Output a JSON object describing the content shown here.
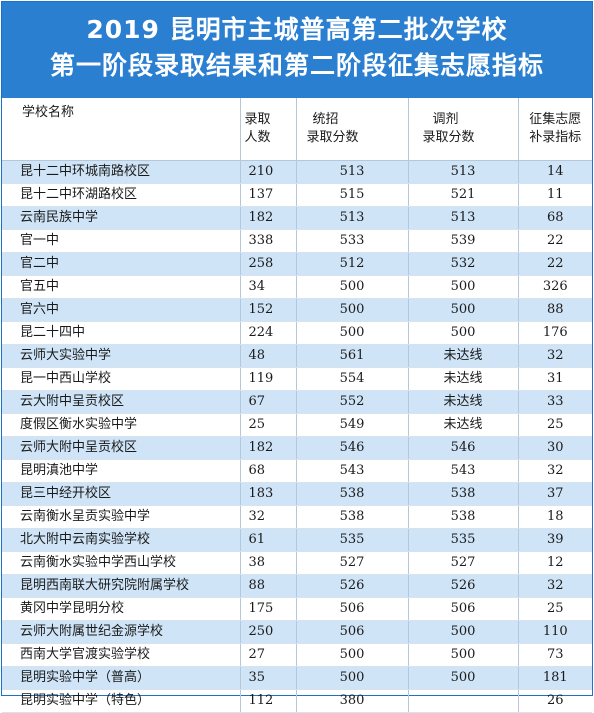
{
  "title": {
    "line1": "2019 昆明市主城普高第二批次学校",
    "line2": "第一阶段录取结果和第二阶段征集志愿指标"
  },
  "headers": {
    "school": "学校名称",
    "admitted_1": "录取",
    "admitted_2": "人数",
    "unified_1": "统招",
    "unified_2": "录取分数",
    "adjusted_1": "调剂",
    "adjusted_2": "录取分数",
    "quota_1": "征集志愿",
    "quota_2": "补录指标"
  },
  "rows": [
    {
      "school": "昆十二中环城南路校区",
      "admitted": "210",
      "unified": "513",
      "adjusted": "513",
      "quota": "14"
    },
    {
      "school": "昆十二中环湖路校区",
      "admitted": "137",
      "unified": "515",
      "adjusted": "521",
      "quota": "11"
    },
    {
      "school": "云南民族中学",
      "admitted": "182",
      "unified": "513",
      "adjusted": "513",
      "quota": "68"
    },
    {
      "school": "官一中",
      "admitted": "338",
      "unified": "533",
      "adjusted": "539",
      "quota": "22"
    },
    {
      "school": "官二中",
      "admitted": "258",
      "unified": "512",
      "adjusted": "532",
      "quota": "22"
    },
    {
      "school": "官五中",
      "admitted": "34",
      "unified": "500",
      "adjusted": "500",
      "quota": "326"
    },
    {
      "school": "官六中",
      "admitted": "152",
      "unified": "500",
      "adjusted": "500",
      "quota": "88"
    },
    {
      "school": "昆二十四中",
      "admitted": "224",
      "unified": "500",
      "adjusted": "500",
      "quota": "176"
    },
    {
      "school": "云师大实验中学",
      "admitted": "48",
      "unified": "561",
      "adjusted": "未达线",
      "quota": "32"
    },
    {
      "school": "昆一中西山学校",
      "admitted": "119",
      "unified": "554",
      "adjusted": "未达线",
      "quota": "31"
    },
    {
      "school": "云大附中呈贡校区",
      "admitted": "67",
      "unified": "552",
      "adjusted": "未达线",
      "quota": "33"
    },
    {
      "school": "度假区衡水实验中学",
      "admitted": "25",
      "unified": "549",
      "adjusted": "未达线",
      "quota": "25"
    },
    {
      "school": "云师大附中呈贡校区",
      "admitted": "182",
      "unified": "546",
      "adjusted": "546",
      "quota": "30"
    },
    {
      "school": "昆明滇池中学",
      "admitted": "68",
      "unified": "543",
      "adjusted": "543",
      "quota": "32"
    },
    {
      "school": "昆三中经开校区",
      "admitted": "183",
      "unified": "538",
      "adjusted": "538",
      "quota": "37"
    },
    {
      "school": "云南衡水呈贡实验中学",
      "admitted": "32",
      "unified": "538",
      "adjusted": "538",
      "quota": "18"
    },
    {
      "school": "北大附中云南实验学校",
      "admitted": "61",
      "unified": "535",
      "adjusted": "535",
      "quota": "39"
    },
    {
      "school": "云南衡水实验中学西山学校",
      "admitted": "38",
      "unified": "527",
      "adjusted": "527",
      "quota": "12"
    },
    {
      "school": "昆明西南联大研究院附属学校",
      "admitted": "88",
      "unified": "526",
      "adjusted": "526",
      "quota": "32"
    },
    {
      "school": "黄冈中学昆明分校",
      "admitted": "175",
      "unified": "506",
      "adjusted": "506",
      "quota": "25"
    },
    {
      "school": "云师大附属世纪金源学校",
      "admitted": "250",
      "unified": "506",
      "adjusted": "500",
      "quota": "110"
    },
    {
      "school": "西南大学官渡实验学校",
      "admitted": "27",
      "unified": "500",
      "adjusted": "500",
      "quota": "73"
    },
    {
      "school": "昆明实验中学（普高）",
      "admitted": "35",
      "unified": "500",
      "adjusted": "500",
      "quota": "181"
    },
    {
      "school": "昆明实验中学（特色）",
      "admitted": "112",
      "unified": "380",
      "adjusted": "",
      "quota": "26"
    }
  ],
  "colors": {
    "title_bg": "#2b7fd0",
    "alt_row_bg": "#cfe4f7"
  }
}
